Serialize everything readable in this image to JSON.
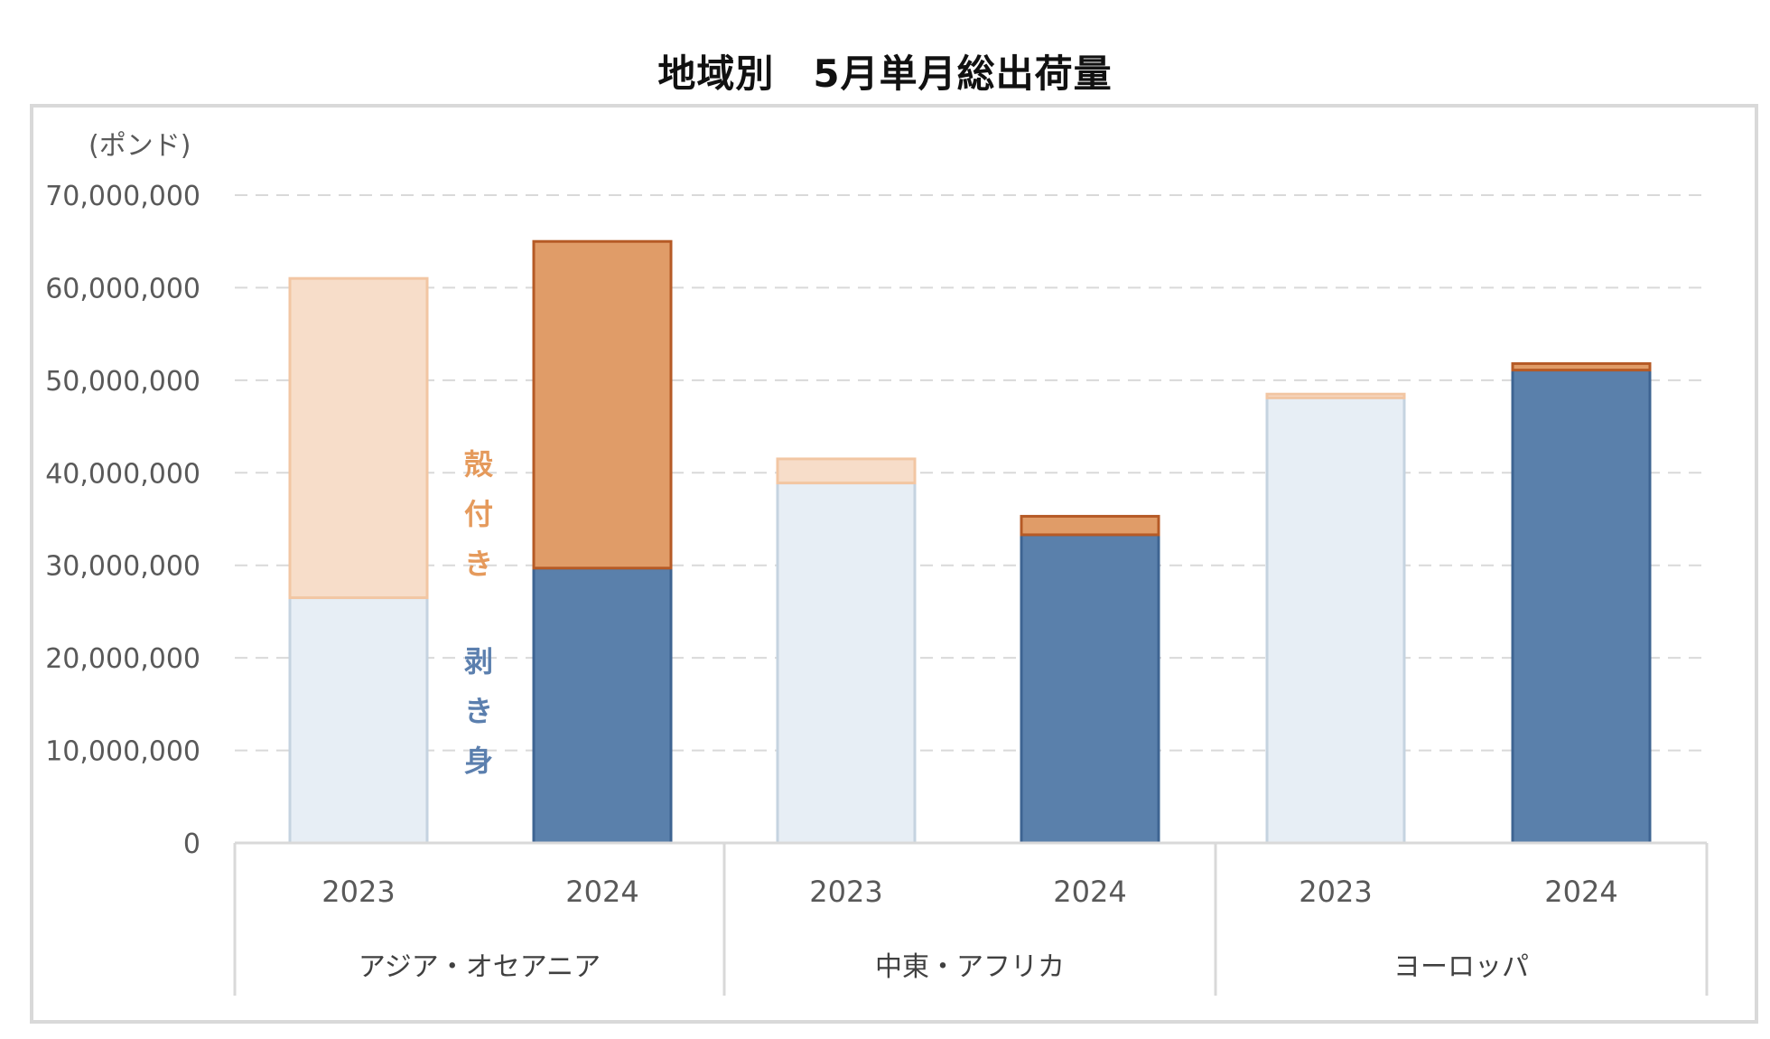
{
  "chart_data": {
    "type": "bar",
    "stacked": true,
    "title": "地域別　5月単月総出荷量",
    "ylabel": "(ポンド)",
    "ylim": [
      0,
      70000000
    ],
    "yticks": [
      0,
      10000000,
      20000000,
      30000000,
      40000000,
      50000000,
      60000000,
      70000000
    ],
    "ytick_labels": [
      "0",
      "10,000,000",
      "20,000,000",
      "30,000,000",
      "40,000,000",
      "50,000,000",
      "60,000,000",
      "70,000,000"
    ],
    "grid": true,
    "groups": [
      {
        "name": "アジア・オセアニア",
        "years": [
          "2023",
          "2024"
        ]
      },
      {
        "name": "中東・アフリカ",
        "years": [
          "2023",
          "2024"
        ]
      },
      {
        "name": "ヨーロッパ",
        "years": [
          "2023",
          "2024"
        ]
      }
    ],
    "series": [
      {
        "name": "剥き身",
        "values": [
          26500000,
          29700000,
          38900000,
          33300000,
          48100000,
          51100000
        ]
      },
      {
        "name": "殻付き",
        "values": [
          34500000,
          35300000,
          2600000,
          2000000,
          400000,
          700000
        ]
      }
    ],
    "legend_series_labels": [
      "殻",
      "付",
      "き",
      "剥",
      "き",
      "身"
    ],
    "colors": {
      "peeled_2023": "#e7eef5",
      "peeled_2023_edge": "#c5d3e0",
      "peeled_2024": "#5a80ab",
      "peeled_2024_edge": "#3e6492",
      "shell_2023": "#f7ddc9",
      "shell_2023_edge": "#f2c6a3",
      "shell_2024": "#e09c68",
      "shell_2024_edge": "#b55a26",
      "legend_shell": "#e59a5c",
      "legend_peeled": "#5b7fae"
    }
  }
}
